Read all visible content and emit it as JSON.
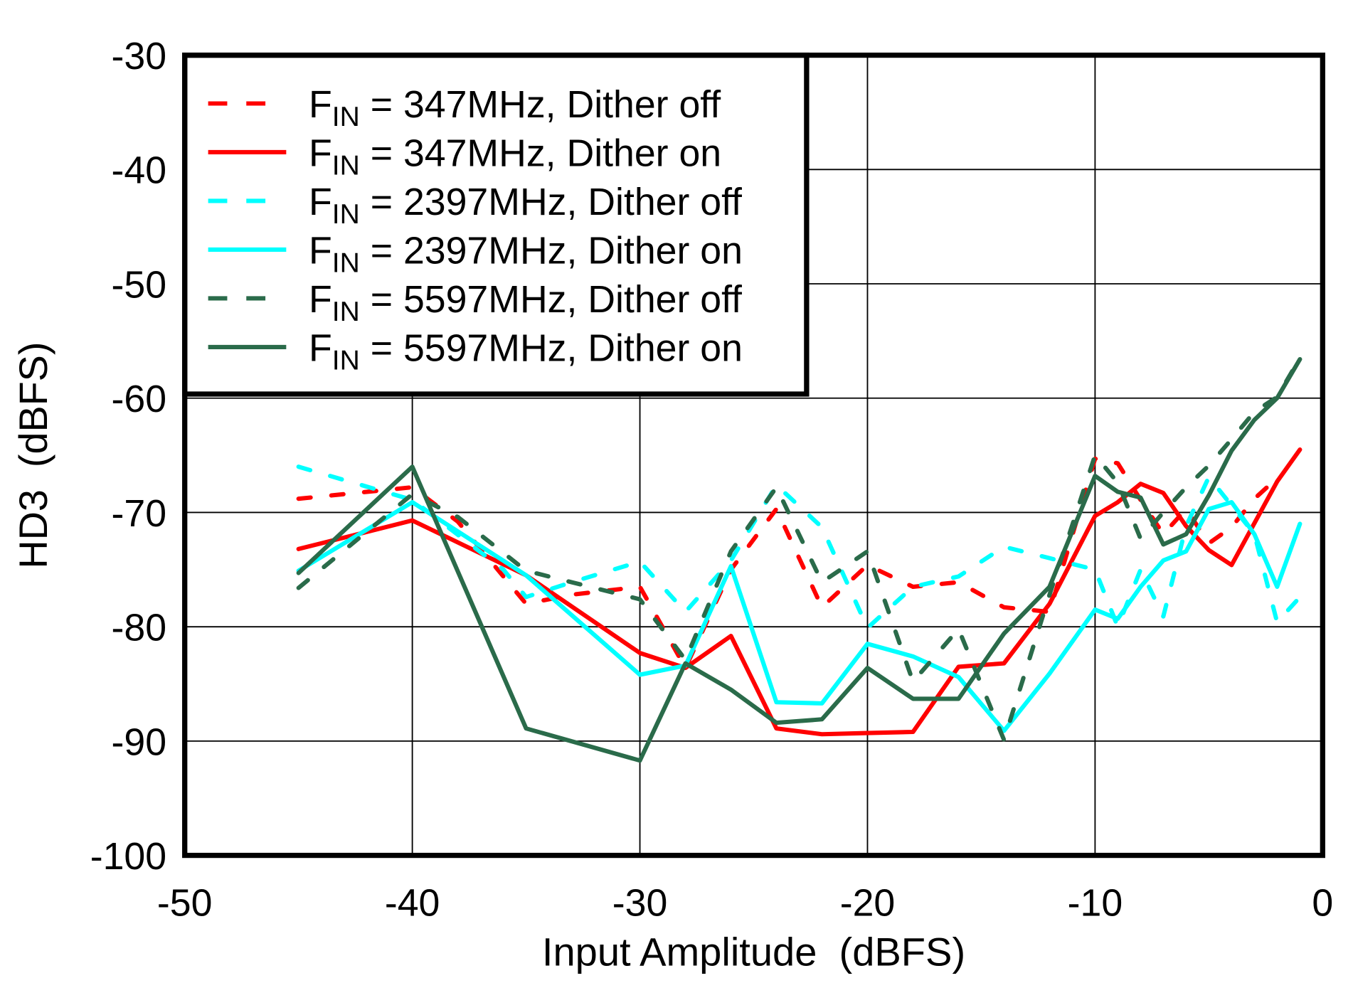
{
  "chart_data": {
    "type": "line",
    "xlabel": "Input Amplitude  (dBFS)",
    "ylabel": "HD3  (dBFS)",
    "xlim": [
      -50,
      0
    ],
    "ylim": [
      -100,
      -30
    ],
    "xticks": [
      "-50",
      "-40",
      "-30",
      "-20",
      "-10",
      "0"
    ],
    "yticks": [
      "-30",
      "-40",
      "-50",
      "-60",
      "-70",
      "-80",
      "-90",
      "-100"
    ],
    "grid": true,
    "legend_position": "top-left",
    "series": [
      {
        "name_prefix": "F",
        "name_subscript": "IN",
        "name_suffix": " = 347MHz,  Dither off",
        "color": "#ff0000",
        "style": "dashed",
        "x": [
          -45,
          -40,
          -38,
          -35,
          -33,
          -30,
          -28,
          -26,
          -24,
          -22,
          -20,
          -18,
          -16,
          -14,
          -12,
          -10,
          -9,
          -8,
          -7,
          -6,
          -5,
          -4,
          -3,
          -2
        ],
        "y": [
          -68.8,
          -67.8,
          -70.8,
          -78,
          -77.2,
          -76.5,
          -83.6,
          -75,
          -69.7,
          -78.3,
          -74.6,
          -76.5,
          -76.1,
          -78.3,
          -78.7,
          -65.3,
          -65.7,
          -68.9,
          -71.9,
          -69.7,
          -72.7,
          -71.3,
          -68.8,
          -67
        ]
      },
      {
        "name_prefix": "F",
        "name_subscript": "IN",
        "name_suffix": " = 347MHz,  Dither on",
        "color": "#ff0000",
        "style": "solid",
        "x": [
          -45,
          -40,
          -35,
          -30,
          -28,
          -26,
          -24,
          -22,
          -20,
          -18,
          -16,
          -14,
          -12,
          -10,
          -9,
          -8,
          -7,
          -6,
          -5,
          -4,
          -2,
          -1
        ],
        "y": [
          -73.2,
          -70.7,
          -75.5,
          -82.3,
          -83.6,
          -80.8,
          -88.9,
          -89.4,
          -89.3,
          -89.2,
          -83.5,
          -83.2,
          -78,
          -70.3,
          -69.1,
          -67.5,
          -68.3,
          -71.2,
          -73.3,
          -74.6,
          -67.3,
          -64.5
        ]
      },
      {
        "name_prefix": "F",
        "name_subscript": "IN",
        "name_suffix": " = 2397MHz,  Dither off",
        "color": "#00ffff",
        "style": "dashed",
        "x": [
          -45,
          -40,
          -36,
          -35,
          -33,
          -30,
          -28,
          -26,
          -24,
          -22,
          -20,
          -18,
          -16,
          -14,
          -12,
          -10,
          -9,
          -8,
          -7,
          -6,
          -5,
          -3,
          -2,
          -1
        ],
        "y": [
          -66,
          -68.9,
          -75,
          -77.4,
          -76.1,
          -74.3,
          -78.7,
          -74.2,
          -67.6,
          -71.3,
          -80.1,
          -76.5,
          -75.6,
          -73,
          -74,
          -75,
          -80,
          -75,
          -79.1,
          -71.2,
          -66.9,
          -71.9,
          -79.6,
          -77.4
        ]
      },
      {
        "name_prefix": "F",
        "name_subscript": "IN",
        "name_suffix": " = 2397MHz,  Dither on",
        "color": "#00ffff",
        "style": "solid",
        "x": [
          -45,
          -40,
          -35,
          -30,
          -28,
          -26,
          -24,
          -22,
          -20,
          -18,
          -16,
          -14,
          -12,
          -10,
          -9,
          -8,
          -7,
          -6,
          -5,
          -4,
          -3,
          -2,
          -1
        ],
        "y": [
          -75.1,
          -69.1,
          -75.5,
          -84.2,
          -83.4,
          -74.7,
          -86.6,
          -86.7,
          -81.5,
          -82.6,
          -84.4,
          -89.1,
          -84.1,
          -78.5,
          -79.3,
          -76.5,
          -74.2,
          -73.4,
          -69.7,
          -69.1,
          -71.9,
          -76.5,
          -71
        ]
      },
      {
        "name_prefix": "F",
        "name_subscript": "IN",
        "name_suffix": " = 5597MHz,  Dither off",
        "color": "#2a6b4a",
        "style": "dashed",
        "x": [
          -45,
          -40,
          -38,
          -35,
          -33,
          -30,
          -28,
          -26,
          -24,
          -22,
          -20,
          -18,
          -16,
          -14,
          -12,
          -10,
          -9,
          -8,
          -7,
          -6,
          -5,
          -4,
          -3,
          -2,
          -1
        ],
        "y": [
          -76.6,
          -68.4,
          -70.4,
          -75.1,
          -76.1,
          -77.6,
          -82.9,
          -73.4,
          -67.8,
          -76.1,
          -73.4,
          -84.8,
          -80.2,
          -89.9,
          -77.2,
          -65,
          -67.4,
          -72.3,
          -70,
          -67.8,
          -65.9,
          -63.6,
          -61.2,
          -59.9,
          -56.5
        ]
      },
      {
        "name_prefix": "F",
        "name_subscript": "IN",
        "name_suffix": " = 5597MHz,  Dither on",
        "color": "#2a6b4a",
        "style": "solid",
        "x": [
          -45,
          -40,
          -35,
          -30,
          -28,
          -26,
          -24,
          -22,
          -20,
          -18,
          -16,
          -14,
          -12,
          -10,
          -9,
          -8,
          -7,
          -6,
          -5,
          -4,
          -3,
          -2,
          -1
        ],
        "y": [
          -75.3,
          -66,
          -88.9,
          -91.7,
          -83.2,
          -85.5,
          -88.4,
          -88.1,
          -83.6,
          -86.3,
          -86.3,
          -80.6,
          -76.5,
          -66.8,
          -68.2,
          -68.7,
          -72.8,
          -71.9,
          -68.5,
          -64.6,
          -61.9,
          -60,
          -56.6
        ]
      }
    ]
  }
}
